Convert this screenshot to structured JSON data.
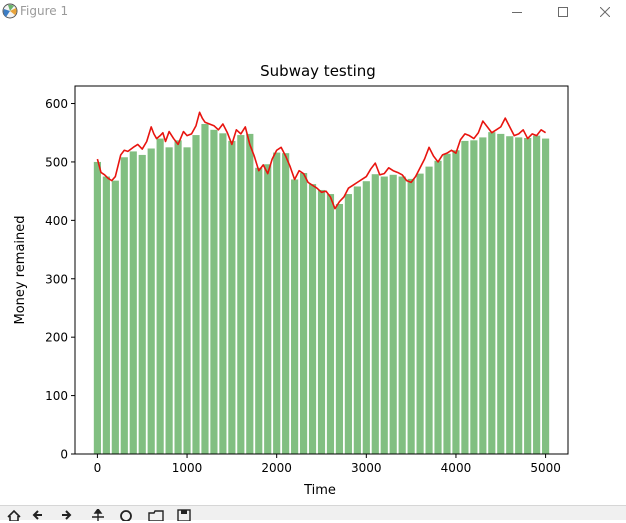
{
  "window": {
    "title": "Figure 1",
    "controls": [
      "minimize-icon",
      "maximize-icon",
      "close-icon"
    ]
  },
  "toolbar": {
    "icons": [
      "home-icon",
      "back-icon",
      "forward-icon",
      "pan-icon",
      "zoom-icon",
      "configure-subplots-icon",
      "save-icon"
    ]
  },
  "colors": {
    "bar": "#81bf81",
    "line": "#e8140f",
    "axes": "#000000",
    "window_text": "#9a9a9a"
  },
  "chart_data": {
    "type": "bar",
    "title": "Subway testing",
    "xlabel": "Time",
    "ylabel": "Money remained",
    "xlim": [
      -250,
      5250
    ],
    "ylim": [
      0,
      630
    ],
    "xticks": [
      0,
      1000,
      2000,
      3000,
      4000,
      5000
    ],
    "xtick_labels": [
      "0",
      "1000",
      "2000",
      "3000",
      "4000",
      "5000"
    ],
    "yticks": [
      0,
      100,
      200,
      300,
      400,
      500,
      600
    ],
    "ytick_labels": [
      "0",
      "100",
      "200",
      "300",
      "400",
      "500",
      "600"
    ],
    "grid": false,
    "legend": "none",
    "bars": {
      "width": 80,
      "x": [
        0,
        100,
        200,
        300,
        400,
        500,
        600,
        700,
        800,
        900,
        1000,
        1100,
        1200,
        1300,
        1400,
        1500,
        1600,
        1700,
        1800,
        1900,
        2000,
        2100,
        2200,
        2300,
        2400,
        2500,
        2600,
        2700,
        2800,
        2900,
        3000,
        3100,
        3200,
        3300,
        3400,
        3500,
        3600,
        3700,
        3800,
        3900,
        4000,
        4100,
        4200,
        4300,
        4400,
        4500,
        4600,
        4700,
        4800,
        4900,
        5000
      ],
      "values": [
        500,
        475,
        468,
        508,
        518,
        512,
        523,
        540,
        525,
        537,
        525,
        546,
        565,
        555,
        549,
        536,
        546,
        548,
        490,
        496,
        516,
        515,
        470,
        481,
        462,
        452,
        445,
        428,
        445,
        458,
        467,
        479,
        475,
        478,
        475,
        471,
        480,
        492,
        502,
        514,
        520,
        536,
        537,
        542,
        551,
        548,
        544,
        542,
        541,
        545,
        540
      ]
    },
    "line": {
      "x": [
        0,
        40,
        80,
        120,
        160,
        200,
        260,
        300,
        340,
        400,
        450,
        500,
        550,
        600,
        630,
        660,
        700,
        730,
        760,
        800,
        850,
        900,
        960,
        1000,
        1050,
        1100,
        1140,
        1170,
        1200,
        1250,
        1300,
        1350,
        1400,
        1450,
        1500,
        1550,
        1600,
        1650,
        1700,
        1750,
        1800,
        1850,
        1900,
        1950,
        2000,
        2050,
        2100,
        2150,
        2200,
        2250,
        2300,
        2350,
        2400,
        2450,
        2500,
        2550,
        2600,
        2650,
        2700,
        2750,
        2800,
        2850,
        2900,
        2950,
        3000,
        3050,
        3100,
        3150,
        3200,
        3250,
        3300,
        3350,
        3400,
        3450,
        3500,
        3550,
        3600,
        3650,
        3700,
        3750,
        3800,
        3850,
        3900,
        3950,
        4000,
        4050,
        4100,
        4150,
        4200,
        4250,
        4300,
        4350,
        4400,
        4450,
        4500,
        4550,
        4600,
        4650,
        4700,
        4750,
        4800,
        4850,
        4900,
        4950,
        5000
      ],
      "y": [
        505,
        482,
        478,
        472,
        468,
        475,
        512,
        520,
        518,
        525,
        530,
        522,
        535,
        560,
        548,
        540,
        545,
        550,
        535,
        552,
        540,
        530,
        552,
        545,
        548,
        562,
        585,
        575,
        568,
        565,
        562,
        555,
        565,
        550,
        530,
        555,
        548,
        560,
        530,
        510,
        485,
        495,
        480,
        505,
        520,
        525,
        510,
        492,
        470,
        485,
        480,
        465,
        460,
        455,
        448,
        450,
        440,
        420,
        432,
        440,
        455,
        460,
        465,
        470,
        475,
        488,
        498,
        478,
        480,
        490,
        485,
        482,
        478,
        468,
        465,
        475,
        490,
        505,
        525,
        510,
        500,
        512,
        515,
        520,
        515,
        538,
        548,
        545,
        540,
        550,
        570,
        560,
        550,
        555,
        560,
        575,
        560,
        545,
        548,
        555,
        540,
        548,
        545,
        555,
        550
      ]
    }
  }
}
